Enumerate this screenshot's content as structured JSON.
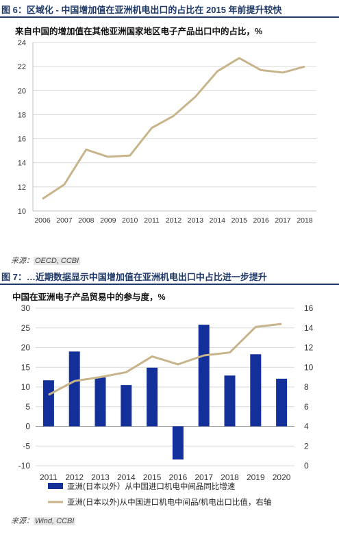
{
  "figure6": {
    "title": "图 6：区域化 - 中国增加值在亚洲机电出口的占比在 2015 年前提升较快",
    "source_label": "来源：",
    "source_value": "OECD, CCBI",
    "chart_data": {
      "type": "line",
      "title": "来自中国的增加值在其他亚洲国家地区电子产品出口中的占比，%",
      "x": [
        "2006",
        "2007",
        "2008",
        "2009",
        "2010",
        "2011",
        "2012",
        "2013",
        "2014",
        "2015",
        "2016",
        "2017",
        "2018"
      ],
      "series": [
        {
          "values": [
            11.0,
            12.2,
            15.1,
            14.5,
            14.6,
            16.9,
            17.9,
            19.5,
            21.6,
            22.7,
            21.7,
            21.5,
            22.0
          ]
        }
      ],
      "y_ticks": [
        "10",
        "12",
        "14",
        "16",
        "18",
        "20",
        "22",
        "24"
      ],
      "ylim": [
        10,
        24
      ],
      "grid": true,
      "colors": {
        "line": "#c8b48a",
        "grid": "#d9d9d9"
      }
    }
  },
  "figure7": {
    "title": "图 7：…近期数据显示中国增加值在亚洲机电出口中占比进一步提升",
    "source_label": "来源：",
    "source_value": "Wind, CCBI",
    "chart_data": {
      "type": "bar",
      "title": "中国在亚洲电子产品贸易中的参与度，%",
      "categories": [
        "2011",
        "2012",
        "2013",
        "2014",
        "2015",
        "2016",
        "2017",
        "2018",
        "2019",
        "2020"
      ],
      "series": [
        {
          "name": "亚洲(日本以外）从中国进口机电中间品同比增速",
          "axis": "left",
          "type": "bar",
          "values": [
            11.7,
            19.0,
            12.4,
            10.5,
            14.9,
            -8.4,
            25.8,
            12.9,
            18.3,
            12.1
          ]
        },
        {
          "name": "亚洲(日本以外)从中国进口机电中间品/机电出口比值，右轴",
          "axis": "right",
          "type": "line",
          "values": [
            7.2,
            8.6,
            9.0,
            9.5,
            11.1,
            10.3,
            11.2,
            11.5,
            14.1,
            14.4
          ]
        }
      ],
      "left_ticks": [
        "30",
        "25",
        "20",
        "15",
        "10",
        "5",
        "0",
        "-5",
        "-10"
      ],
      "right_ticks": [
        "16",
        "14",
        "12",
        "10",
        "8",
        "6",
        "4",
        "2",
        "0"
      ],
      "ylim_left": [
        -10,
        30
      ],
      "ylim_right": [
        0,
        16
      ],
      "grid": true,
      "legend": "bottom",
      "colors": {
        "bar": "#13309a",
        "line": "#c8b48a",
        "grid": "#d9d9d9"
      }
    }
  }
}
